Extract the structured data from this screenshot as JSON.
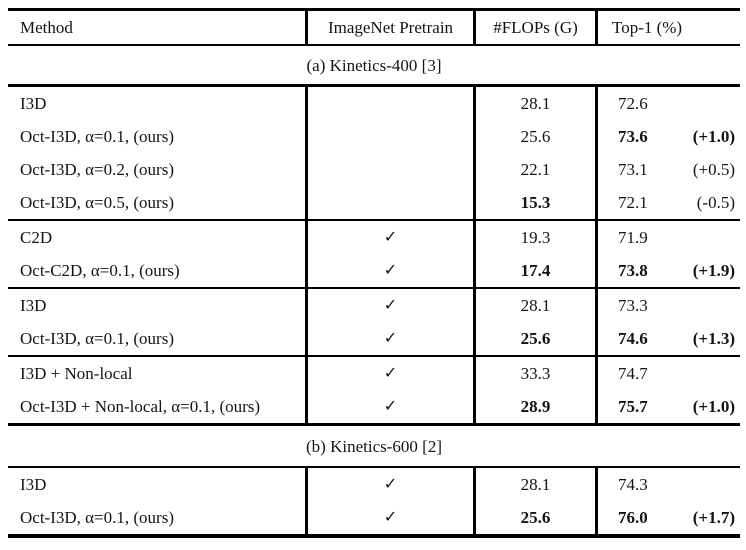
{
  "page": {
    "background": "#ffffff",
    "text_color": "#141414",
    "rule_color": "#000000"
  },
  "table": {
    "columns": [
      {
        "label": "Method"
      },
      {
        "label": "ImageNet Pretrain"
      },
      {
        "label": "#FLOPs (G)"
      },
      {
        "label": "Top-1 (%)"
      }
    ],
    "checkmark_icon": "✓",
    "sections": [
      {
        "title": "(a) Kinetics-400 [3]",
        "groups": [
          {
            "rows": [
              {
                "method": "I3D",
                "pretrain": "",
                "flops": "28.1",
                "top1": "72.6",
                "delta": "",
                "flops_bold": false,
                "top1_bold": false,
                "delta_bold": false
              },
              {
                "method": "Oct-I3D, α=0.1, (ours)",
                "pretrain": "",
                "flops": "25.6",
                "top1": "73.6",
                "delta": "(+1.0)",
                "flops_bold": false,
                "top1_bold": true,
                "delta_bold": true
              },
              {
                "method": "Oct-I3D, α=0.2, (ours)",
                "pretrain": "",
                "flops": "22.1",
                "top1": "73.1",
                "delta": "(+0.5)",
                "flops_bold": false,
                "top1_bold": false,
                "delta_bold": false
              },
              {
                "method": "Oct-I3D, α=0.5, (ours)",
                "pretrain": "",
                "flops": "15.3",
                "top1": "72.1",
                "delta": "(-0.5)",
                "flops_bold": true,
                "top1_bold": false,
                "delta_bold": false
              }
            ]
          },
          {
            "rows": [
              {
                "method": "C2D",
                "pretrain": "✓",
                "flops": "19.3",
                "top1": "71.9",
                "delta": "",
                "flops_bold": false,
                "top1_bold": false,
                "delta_bold": false
              },
              {
                "method": "Oct-C2D, α=0.1, (ours)",
                "pretrain": "✓",
                "flops": "17.4",
                "top1": "73.8",
                "delta": "(+1.9)",
                "flops_bold": true,
                "top1_bold": true,
                "delta_bold": true
              }
            ]
          },
          {
            "rows": [
              {
                "method": "I3D",
                "pretrain": "✓",
                "flops": "28.1",
                "top1": "73.3",
                "delta": "",
                "flops_bold": false,
                "top1_bold": false,
                "delta_bold": false
              },
              {
                "method": "Oct-I3D, α=0.1, (ours)",
                "pretrain": "✓",
                "flops": "25.6",
                "top1": "74.6",
                "delta": "(+1.3)",
                "flops_bold": true,
                "top1_bold": true,
                "delta_bold": true
              }
            ]
          },
          {
            "rows": [
              {
                "method": "I3D + Non-local",
                "pretrain": "✓",
                "flops": "33.3",
                "top1": "74.7",
                "delta": "",
                "flops_bold": false,
                "top1_bold": false,
                "delta_bold": false
              },
              {
                "method": "Oct-I3D + Non-local, α=0.1, (ours)",
                "pretrain": "✓",
                "flops": "28.9",
                "top1": "75.7",
                "delta": "(+1.0)",
                "flops_bold": true,
                "top1_bold": true,
                "delta_bold": true
              }
            ]
          }
        ]
      },
      {
        "title": "(b) Kinetics-600 [2]",
        "groups": [
          {
            "rows": [
              {
                "method": "I3D",
                "pretrain": "✓",
                "flops": "28.1",
                "top1": "74.3",
                "delta": "",
                "flops_bold": false,
                "top1_bold": false,
                "delta_bold": false
              },
              {
                "method": "Oct-I3D, α=0.1, (ours)",
                "pretrain": "✓",
                "flops": "25.6",
                "top1": "76.0",
                "delta": "(+1.7)",
                "flops_bold": true,
                "top1_bold": true,
                "delta_bold": true
              }
            ]
          }
        ]
      }
    ]
  }
}
